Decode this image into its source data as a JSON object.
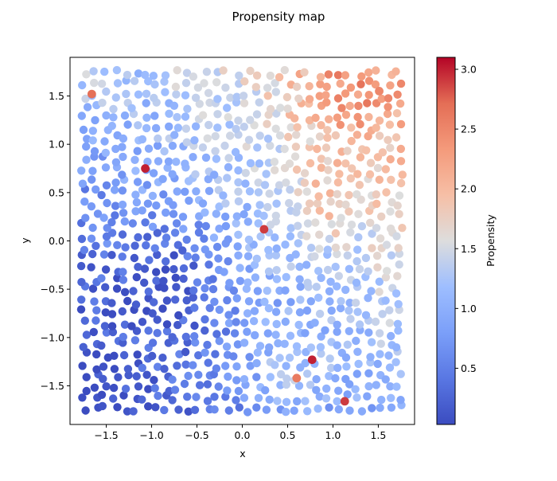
{
  "chart_data": {
    "type": "scatter",
    "title": "Propensity map",
    "xlabel": "x",
    "ylabel": "y",
    "xlim": [
      -1.9,
      1.9
    ],
    "ylim": [
      -1.9,
      1.9
    ],
    "xticks": [
      "−1.5",
      "−1.0",
      "−0.5",
      "0.0",
      "0.5",
      "1.0",
      "1.5"
    ],
    "xtick_values": [
      -1.5,
      -1.0,
      -0.5,
      0.0,
      0.5,
      1.0,
      1.5
    ],
    "yticks": [
      "−1.5",
      "−1.0",
      "−0.5",
      "0.0",
      "0.5",
      "1.0",
      "1.5"
    ],
    "ytick_values": [
      -1.5,
      -1.0,
      -0.5,
      0.0,
      0.5,
      1.0,
      1.5
    ],
    "grid": false,
    "colormap": "coolwarm",
    "colorbar": {
      "label": "Propensity",
      "range": [
        0.03,
        3.1
      ],
      "ticks": [
        "0.5",
        "1.0",
        "1.5",
        "2.0",
        "2.5",
        "3.0"
      ],
      "tick_values": [
        0.5,
        1.0,
        1.5,
        2.0,
        2.5,
        3.0
      ]
    },
    "marker_color_encodes": "Propensity",
    "marker_colors": {
      "low": "#3b4cc0",
      "mid": "#dddddd",
      "high": "#b40426"
    },
    "highlight_points": [
      {
        "x": -1.07,
        "y": 0.75,
        "value": 3.0
      },
      {
        "x": 0.24,
        "y": 0.12,
        "value": 2.9
      },
      {
        "x": 0.77,
        "y": -1.23,
        "value": 3.0
      },
      {
        "x": 1.13,
        "y": -1.66,
        "value": 2.9
      },
      {
        "x": -1.66,
        "y": 1.52,
        "value": 2.7
      },
      {
        "x": 0.6,
        "y": -1.42,
        "value": 2.6
      },
      {
        "x": 1.51,
        "y": 1.55,
        "value": 2.5
      }
    ]
  }
}
